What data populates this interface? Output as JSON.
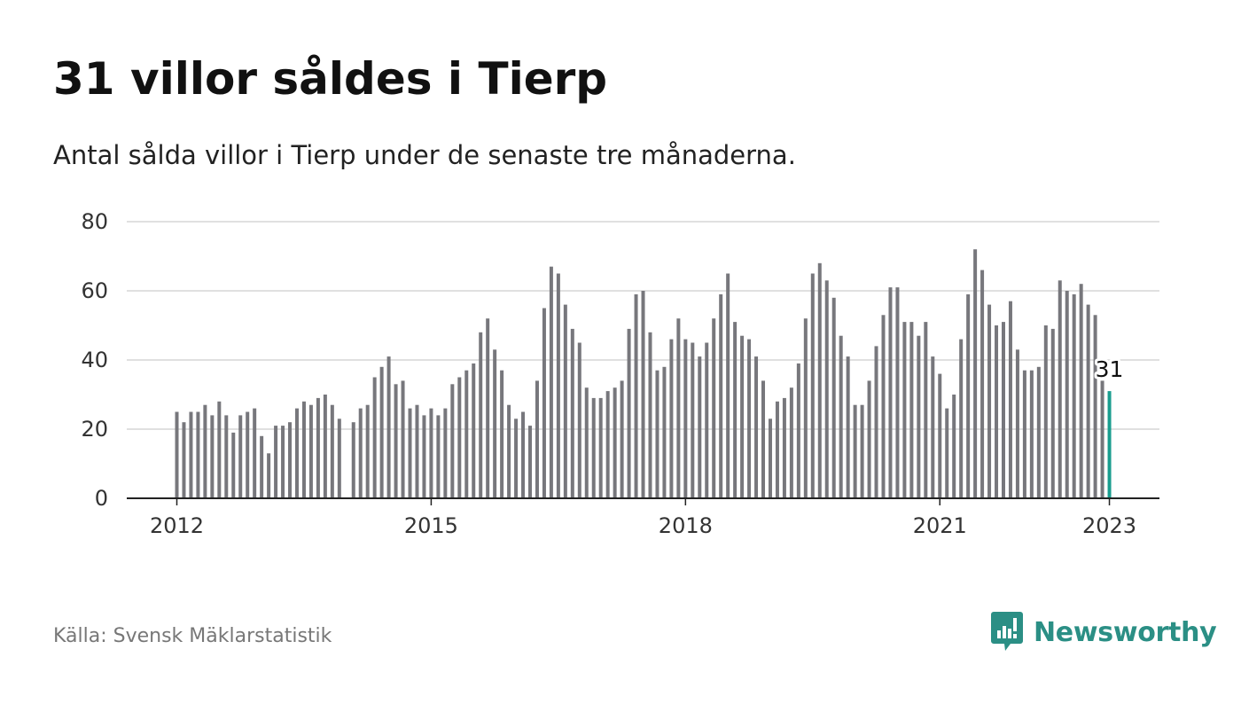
{
  "title": "31 villor såldes i Tierp",
  "subtitle": "Antal sålda villor i Tierp under de senaste tre månaderna.",
  "source": "Källa: Svensk Mäklarstatistik",
  "brand": {
    "name": "Newsworthy",
    "icon": "newsworthy-logo-icon",
    "color": "#2b8f85"
  },
  "colors": {
    "bar": "#77777c",
    "highlight": "#1a9e8f",
    "grid": "#d6d6d6",
    "axis": "#222222"
  },
  "chart_data": {
    "type": "bar",
    "title": "31 villor såldes i Tierp",
    "xlabel": "",
    "ylabel": "",
    "ylim": [
      0,
      80
    ],
    "yticks": [
      0,
      20,
      40,
      60,
      80
    ],
    "x_start": "2012-01",
    "xticks": [
      "2012",
      "2015",
      "2018",
      "2021",
      "2023"
    ],
    "grid": true,
    "highlight_label": "31",
    "values": [
      25,
      22,
      25,
      25,
      27,
      24,
      28,
      24,
      19,
      24,
      25,
      26,
      18,
      13,
      21,
      21,
      22,
      26,
      28,
      27,
      29,
      30,
      27,
      23,
      null,
      22,
      26,
      27,
      35,
      38,
      41,
      33,
      34,
      26,
      27,
      24,
      26,
      24,
      26,
      33,
      35,
      37,
      39,
      48,
      52,
      43,
      37,
      27,
      23,
      25,
      21,
      34,
      55,
      67,
      65,
      56,
      49,
      45,
      32,
      29,
      29,
      31,
      32,
      34,
      49,
      59,
      60,
      48,
      37,
      38,
      46,
      52,
      46,
      45,
      41,
      45,
      52,
      59,
      65,
      51,
      47,
      46,
      41,
      34,
      23,
      28,
      29,
      32,
      39,
      52,
      65,
      68,
      63,
      58,
      47,
      41,
      27,
      27,
      34,
      44,
      53,
      61,
      61,
      51,
      51,
      47,
      51,
      41,
      36,
      26,
      30,
      46,
      59,
      72,
      66,
      56,
      50,
      51,
      57,
      43,
      37,
      37,
      38,
      50,
      49,
      63,
      60,
      59,
      62,
      56,
      53,
      34,
      31
    ]
  }
}
